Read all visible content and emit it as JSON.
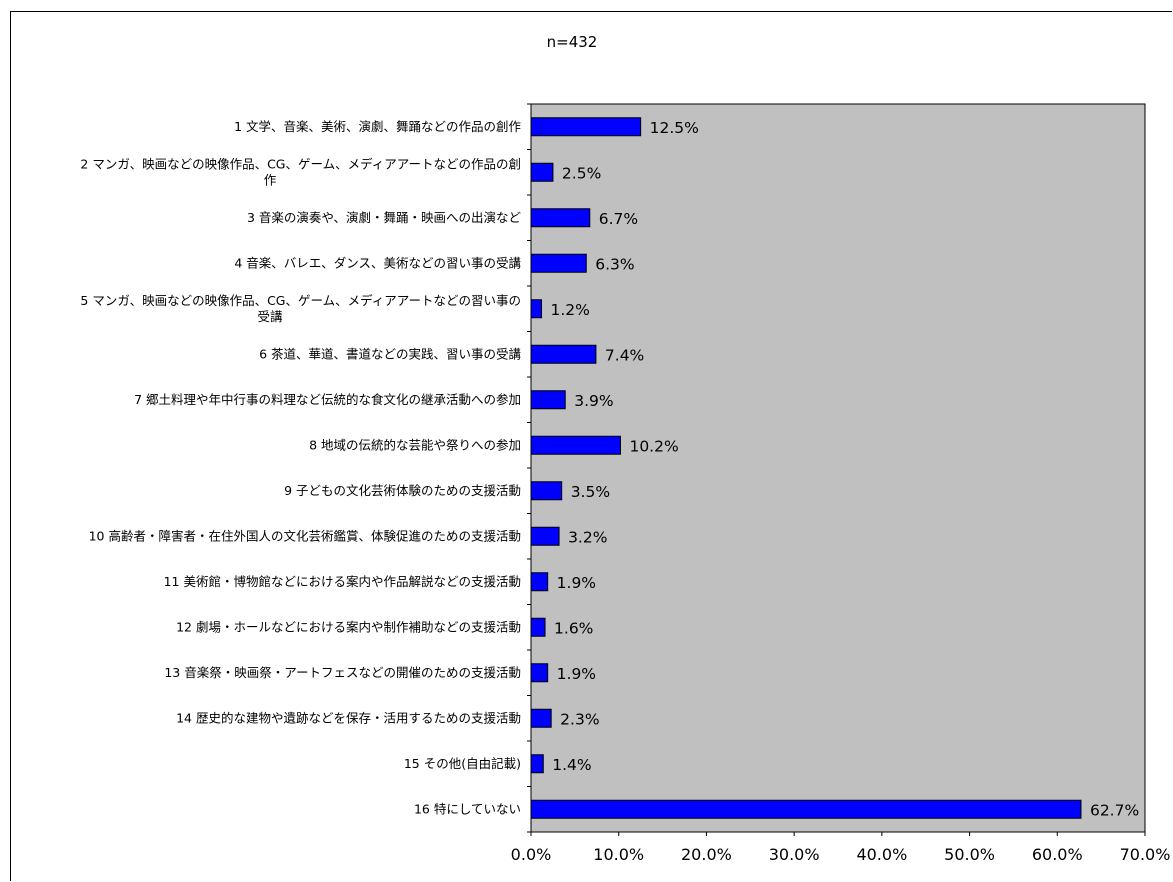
{
  "chart_data": {
    "type": "bar",
    "orientation": "horizontal",
    "subtitle": "n=432",
    "categories": [
      [
        "1 文学、音楽、美術、演劇、舞踊などの作品の創作"
      ],
      [
        "2 マンガ、映画などの映像作品、CG、ゲーム、メディアアートなどの作品の創",
        "作"
      ],
      [
        "3 音楽の演奏や、演劇・舞踊・映画への出演など"
      ],
      [
        "4 音楽、バレエ、ダンス、美術などの習い事の受講"
      ],
      [
        "5 マンガ、映画などの映像作品、CG、ゲーム、メディアアートなどの習い事の",
        "受講"
      ],
      [
        "6 茶道、華道、書道などの実践、習い事の受講"
      ],
      [
        "7 郷土料理や年中行事の料理など伝統的な食文化の継承活動への参加"
      ],
      [
        "8 地域の伝統的な芸能や祭りへの参加"
      ],
      [
        "9 子どもの文化芸術体験のための支援活動"
      ],
      [
        "10 高齢者・障害者・在住外国人の文化芸術鑑賞、体験促進のための支援活動"
      ],
      [
        "11 美術館・博物館などにおける案内や作品解説などの支援活動"
      ],
      [
        "12 劇場・ホールなどにおける案内や制作補助などの支援活動"
      ],
      [
        "13 音楽祭・映画祭・アートフェスなどの開催のための支援活動"
      ],
      [
        "14 歴史的な建物や遺跡などを保存・活用するための支援活動"
      ],
      [
        "15 その他(自由記載)"
      ],
      [
        "16 特にしていない"
      ]
    ],
    "values": [
      12.5,
      2.5,
      6.7,
      6.3,
      1.2,
      7.4,
      3.9,
      10.2,
      3.5,
      3.2,
      1.9,
      1.6,
      1.9,
      2.3,
      1.4,
      62.7
    ],
    "value_labels": [
      "12.5%",
      "2.5%",
      "6.7%",
      "6.3%",
      "1.2%",
      "7.4%",
      "3.9%",
      "10.2%",
      "3.5%",
      "3.2%",
      "1.9%",
      "1.6%",
      "1.9%",
      "2.3%",
      "1.4%",
      "62.7%"
    ],
    "xlim": [
      0,
      70
    ],
    "xticks": [
      0,
      10,
      20,
      30,
      40,
      50,
      60,
      70
    ],
    "xtick_labels": [
      "0.0%",
      "10.0%",
      "20.0%",
      "30.0%",
      "40.0%",
      "50.0%",
      "60.0%",
      "70.0%"
    ],
    "bar_color": "#0000ff",
    "plot_background": "#c0c0c0",
    "grid": false,
    "legend": "none"
  }
}
